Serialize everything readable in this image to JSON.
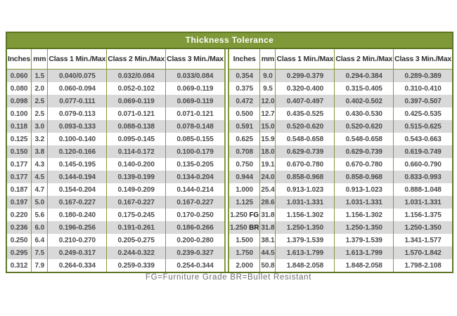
{
  "title": "Thickness Tolerance",
  "footer": "FG=Furniture Grade BR=Bullet Resistant",
  "columns": [
    "Inches",
    "mm",
    "Class 1 Min./Max",
    "Class 2 Min./Max",
    "Class 3 Min./Max"
  ],
  "colors": {
    "title_bar_green": "#7f9838",
    "border_dark_green": "#5d7524",
    "grid_green": "#84993c",
    "stripe_gray": "#d9d9d9",
    "title_text": "#ffffff",
    "cell_text": "#4a4a4a"
  },
  "tables": {
    "left": {
      "rows": [
        [
          "0.060",
          "1.5",
          "0.040/0.075",
          "0.032/0.084",
          "0.033/0.084"
        ],
        [
          "0.080",
          "2.0",
          "0.060-0.094",
          "0.052-0.102",
          "0.069-0.119"
        ],
        [
          "0.098",
          "2.5",
          "0.077-0.111",
          "0.069-0.119",
          "0.069-0.119"
        ],
        [
          "0.100",
          "2.5",
          "0.079-0.113",
          "0.071-0.121",
          "0.071-0.121"
        ],
        [
          "0.118",
          "3.0",
          "0.093-0.133",
          "0.088-0.138",
          "0.078-0.148"
        ],
        [
          "0.125",
          "3.2",
          "0.100-0.140",
          "0.095-0.145",
          "0.085-0.155"
        ],
        [
          "0.150",
          "3.8",
          "0.120-0.166",
          "0.114-0.172",
          "0.100-0.179"
        ],
        [
          "0.177",
          "4.3",
          "0.145-0.195",
          "0.140-0.200",
          "0.135-0.205"
        ],
        [
          "0.177",
          "4.5",
          "0.144-0.194",
          "0.139-0.199",
          "0.134-0.204"
        ],
        [
          "0.187",
          "4.7",
          "0.154-0.204",
          "0.149-0.209",
          "0.144-0.214"
        ],
        [
          "0.197",
          "5.0",
          "0.167-0.227",
          "0.167-0.227",
          "0.167-0.227"
        ],
        [
          "0.220",
          "5.6",
          "0.180-0.240",
          "0.175-0.245",
          "0.170-0.250"
        ],
        [
          "0.236",
          "6.0",
          "0.196-0.256",
          "0.191-0.261",
          "0.186-0.266"
        ],
        [
          "0.250",
          "6.4",
          "0.210-0.270",
          "0.205-0.275",
          "0.200-0.280"
        ],
        [
          "0.295",
          "7.5",
          "0.249-0.317",
          "0.244-0.322",
          "0.239-0.327"
        ],
        [
          "0.312",
          "7.9",
          "0.264-0.334",
          "0.259-0.339",
          "0.254-0.344"
        ]
      ]
    },
    "right": {
      "rows": [
        [
          "0.354",
          "9.0",
          "0.299-0.379",
          "0.294-0.384",
          "0.289-0.389"
        ],
        [
          "0.375",
          "9.5",
          "0.320-0.400",
          "0.315-0.405",
          "0.310-0.410"
        ],
        [
          "0.472",
          "12.0",
          "0.407-0.497",
          "0.402-0.502",
          "0.397-0.507"
        ],
        [
          "0.500",
          "12.7",
          "0.435-0.525",
          "0.430-0.530",
          "0.425-0.535"
        ],
        [
          "0.591",
          "15.0",
          "0.520-0.620",
          "0.520-0.620",
          "0.515-0.625"
        ],
        [
          "0.625",
          "15.9",
          "0.548-0.658",
          "0.548-0.658",
          "0.543-0.663"
        ],
        [
          "0.708",
          "18.0",
          "0.629-0.739",
          "0.629-0.739",
          "0.619-0.749"
        ],
        [
          "0.750",
          "19.1",
          "0.670-0.780",
          "0.670-0.780",
          "0.660-0.790"
        ],
        [
          "0.944",
          "24.0",
          "0.858-0.968",
          "0.858-0.968",
          "0.833-0.993"
        ],
        [
          "1.000",
          "25.4",
          "0.913-1.023",
          "0.913-1.023",
          "0.888-1.048"
        ],
        [
          "1.125",
          "28.6",
          "1.031-1.331",
          "1.031-1.331",
          "1.031-1.331"
        ],
        [
          "1.250 FG",
          "31.8",
          "1.156-1.302",
          "1.156-1.302",
          "1.156-1.375"
        ],
        [
          "1.250 BR",
          "31.8",
          "1.250-1.350",
          "1.250-1.350",
          "1.250-1.350"
        ],
        [
          "1.500",
          "38.1",
          "1.379-1.539",
          "1.379-1.539",
          "1.341-1.577"
        ],
        [
          "1.750",
          "44.5",
          "1.613-1.799",
          "1.613-1.799",
          "1.570-1.842"
        ],
        [
          "2.000",
          "50.8",
          "1.848-2.058",
          "1.848-2.058",
          "1.798-2.108"
        ]
      ]
    }
  }
}
